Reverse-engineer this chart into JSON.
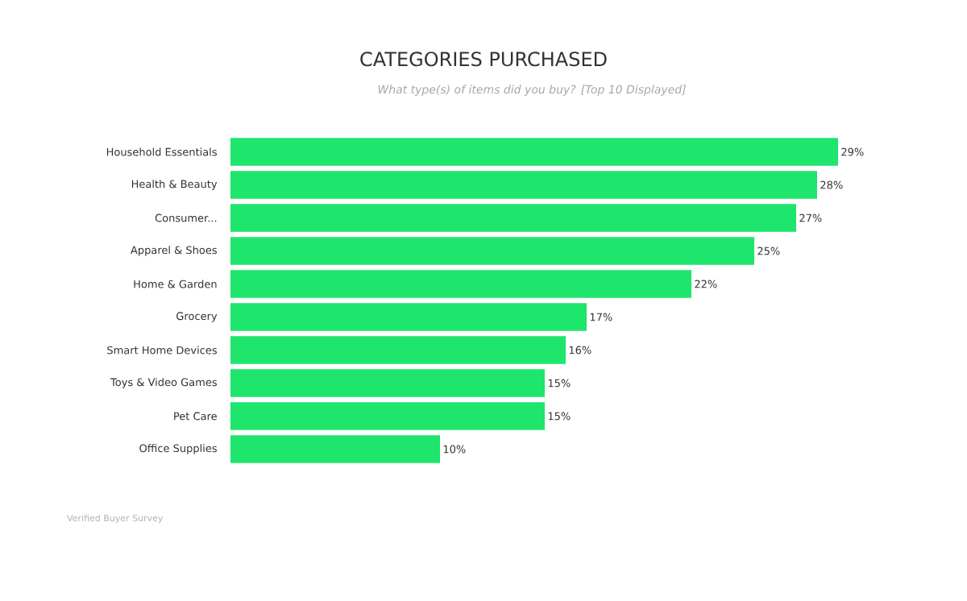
{
  "chart_data": {
    "type": "bar",
    "orientation": "horizontal",
    "title": "CATEGORIES PURCHASED",
    "subtitle": "What type(s) of items did you buy? [Top 10 Displayed]",
    "categories": [
      "Household Essentials",
      "Health & Beauty",
      "Consumer...",
      "Apparel & Shoes",
      "Home & Garden",
      "Grocery",
      "Smart Home Devices",
      "Toys & Video Games",
      "Pet Care",
      "Office Supplies"
    ],
    "values": [
      29,
      28,
      27,
      25,
      22,
      17,
      16,
      15,
      15,
      10
    ],
    "value_labels": [
      "29%",
      "28%",
      "27%",
      "25%",
      "22%",
      "17%",
      "16%",
      "15%",
      "15%",
      "10%"
    ],
    "color": "#1ee56c",
    "annotations": [
      "Verified Buyer Survey"
    ]
  }
}
